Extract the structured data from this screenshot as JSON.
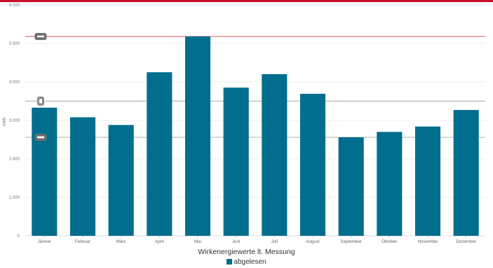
{
  "chart_data": {
    "type": "bar",
    "categories": [
      "Jänner",
      "Februar",
      "März",
      "April",
      "Mai",
      "Juni",
      "Juli",
      "August",
      "September",
      "Oktober",
      "November",
      "Dezember"
    ],
    "series": [
      {
        "name": "abgelesen",
        "values": [
          3330,
          3080,
          2880,
          4250,
          5180,
          3850,
          4200,
          3690,
          2560,
          2700,
          2840,
          3270
        ],
        "color": "#006e8c"
      }
    ],
    "ylim": [
      0,
      6000
    ],
    "yticks": [
      "0",
      "1.000",
      "2.000",
      "3.000",
      "4.000",
      "5.000",
      "6.000"
    ],
    "ylabel": "kWh",
    "xlabel": "Wirkenergiewerte lt. Messung",
    "reference_lines": [
      {
        "value": 5180,
        "color": "#e07a7a"
      },
      {
        "value": 3500,
        "color": "#b8b8b8"
      },
      {
        "value": 2560,
        "color": "#b8b8b8"
      }
    ],
    "grid": true,
    "legend_position": "bottom"
  }
}
